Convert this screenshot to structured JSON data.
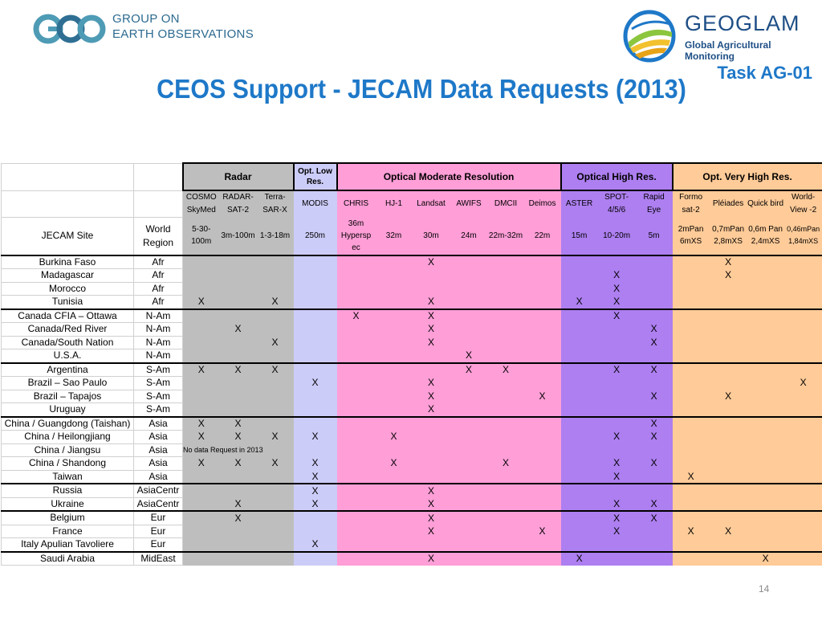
{
  "header": {
    "geo_line1": "GROUP ON",
    "geo_line2": "EARTH OBSERVATIONS",
    "geoglam_name": "GEOGLAM",
    "geoglam_sub": "Global Agricultural Monitoring",
    "task": "Task AG-01",
    "title": "CEOS Support - JECAM Data Requests (2013)"
  },
  "colors": {
    "title": "#1e78c8",
    "radar": "#bebebe",
    "low_res": "#ccccf8",
    "moderate": "#ff9ed7",
    "high": "#ad7ff0",
    "very_high": "#ffcb98"
  },
  "groups": [
    "Radar",
    "Opt. Low Res.",
    "Optical Moderate Resolution",
    "Optical High Res.",
    "Opt. Very High Res."
  ],
  "columns": [
    {
      "name": "COSMO SkyMed",
      "res": "5-30-100m"
    },
    {
      "name": "RADAR-SAT-2",
      "res": "3m-100m"
    },
    {
      "name": "Terra-SAR-X",
      "res": "1-3-18m"
    },
    {
      "name": "MODIS",
      "res": "250m"
    },
    {
      "name": "CHRIS",
      "res": "36m Hypersp ec"
    },
    {
      "name": "HJ-1",
      "res": "32m"
    },
    {
      "name": "Landsat",
      "res": "30m"
    },
    {
      "name": "AWIFS",
      "res": "24m"
    },
    {
      "name": "DMCII",
      "res": "22m-32m"
    },
    {
      "name": "Deimos",
      "res": "22m"
    },
    {
      "name": "ASTER",
      "res": "15m"
    },
    {
      "name": "SPOT-4/5/6",
      "res": "10-20m"
    },
    {
      "name": "Rapid Eye",
      "res": "5m"
    },
    {
      "name": "Formo sat-2",
      "res": "2mPan 6mXS"
    },
    {
      "name": "Pléiades",
      "res": "0,7mPan 2,8mXS"
    },
    {
      "name": "Quick bird",
      "res": "0,6m Pan 2,4mXS"
    },
    {
      "name": "World-View -2",
      "res": "0,46mPan 1,84mXS"
    }
  ],
  "site_header": "JECAM Site",
  "region_header": "World Region",
  "no_data_note": "No data Request in 2013",
  "rows": [
    {
      "site": "Burkina Faso",
      "region": "Afr",
      "x": [
        "",
        "",
        "",
        "",
        "",
        "",
        "X",
        "",
        "",
        "",
        "",
        "",
        "",
        "",
        "X",
        "",
        ""
      ]
    },
    {
      "site": "Madagascar",
      "region": "Afr",
      "x": [
        "",
        "",
        "",
        "",
        "",
        "",
        "",
        "",
        "",
        "",
        "",
        "X",
        "",
        "",
        "X",
        "",
        ""
      ]
    },
    {
      "site": "Morocco",
      "region": "Afr",
      "x": [
        "",
        "",
        "",
        "",
        "",
        "",
        "",
        "",
        "",
        "",
        "",
        "X",
        "",
        "",
        "",
        "",
        ""
      ]
    },
    {
      "site": "Tunisia",
      "region": "Afr",
      "x": [
        "X",
        "",
        "X",
        "",
        "",
        "",
        "X",
        "",
        "",
        "",
        "X",
        "X",
        "",
        "",
        "",
        "",
        ""
      ]
    },
    {
      "site": "Canada CFIA – Ottawa",
      "region": "N-Am",
      "x": [
        "",
        "",
        "",
        "",
        "X",
        "",
        "X",
        "",
        "",
        "",
        "",
        "X",
        "",
        "",
        "",
        "",
        ""
      ]
    },
    {
      "site": "Canada/Red River",
      "region": "N-Am",
      "x": [
        "",
        "X",
        "",
        "",
        "",
        "",
        "X",
        "",
        "",
        "",
        "",
        "",
        "X",
        "",
        "",
        "",
        ""
      ]
    },
    {
      "site": "Canada/South Nation",
      "region": "N-Am",
      "x": [
        "",
        "",
        "X",
        "",
        "",
        "",
        "X",
        "",
        "",
        "",
        "",
        "",
        "X",
        "",
        "",
        "",
        ""
      ]
    },
    {
      "site": "U.S.A.",
      "region": "N-Am",
      "x": [
        "",
        "",
        "",
        "",
        "",
        "",
        "",
        "X",
        "",
        "",
        "",
        "",
        "",
        "",
        "",
        "",
        ""
      ]
    },
    {
      "site": "Argentina",
      "region": "S-Am",
      "x": [
        "X",
        "X",
        "X",
        "",
        "",
        "",
        "",
        "X",
        "X",
        "",
        "",
        "X",
        "X",
        "",
        "",
        "",
        ""
      ]
    },
    {
      "site": "Brazil – Sao Paulo",
      "region": "S-Am",
      "x": [
        "",
        "",
        "",
        "X",
        "",
        "",
        "X",
        "",
        "",
        "",
        "",
        "",
        "",
        "",
        "",
        "",
        "X"
      ]
    },
    {
      "site": "Brazil – Tapajos",
      "region": "S-Am",
      "x": [
        "",
        "",
        "",
        "",
        "",
        "",
        "X",
        "",
        "",
        "X",
        "",
        "",
        "X",
        "",
        "X",
        "",
        ""
      ]
    },
    {
      "site": "Uruguay",
      "region": "S-Am",
      "x": [
        "",
        "",
        "",
        "",
        "",
        "",
        "X",
        "",
        "",
        "",
        "",
        "",
        "",
        "",
        "",
        "",
        ""
      ]
    },
    {
      "site": "China / Guangdong (Taishan)",
      "region": "Asia",
      "x": [
        "X",
        "X",
        "",
        "",
        "",
        "",
        "",
        "",
        "",
        "",
        "",
        "",
        "X",
        "",
        "",
        "",
        ""
      ]
    },
    {
      "site": "China / Heilongjiang",
      "region": "Asia",
      "x": [
        "X",
        "X",
        "X",
        "X",
        "",
        "X",
        "",
        "",
        "",
        "",
        "",
        "X",
        "X",
        "",
        "",
        "",
        ""
      ]
    },
    {
      "site": "China / Jiangsu",
      "region": "Asia",
      "note": true
    },
    {
      "site": "China / Shandong",
      "region": "Asia",
      "x": [
        "X",
        "X",
        "X",
        "X",
        "",
        "X",
        "",
        "",
        "X",
        "",
        "",
        "X",
        "X",
        "",
        "",
        "",
        ""
      ]
    },
    {
      "site": "Taiwan",
      "region": "Asia",
      "x": [
        "",
        "",
        "",
        "X",
        "",
        "",
        "",
        "",
        "",
        "",
        "",
        "X",
        "",
        "X",
        "",
        "",
        ""
      ]
    },
    {
      "site": "Russia",
      "region": "AsiaCentr",
      "x": [
        "",
        "",
        "",
        "X",
        "",
        "",
        "X",
        "",
        "",
        "",
        "",
        "",
        "",
        "",
        "",
        "",
        ""
      ]
    },
    {
      "site": "Ukraine",
      "region": "AsiaCentr",
      "x": [
        "",
        "X",
        "",
        "X",
        "",
        "",
        "X",
        "",
        "",
        "",
        "",
        "X",
        "X",
        "",
        "",
        "",
        ""
      ]
    },
    {
      "site": "Belgium",
      "region": "Eur",
      "x": [
        "",
        "X",
        "",
        "",
        "",
        "",
        "X",
        "",
        "",
        "",
        "",
        "X",
        "X",
        "",
        "",
        "",
        ""
      ]
    },
    {
      "site": "France",
      "region": "Eur",
      "x": [
        "",
        "",
        "",
        "",
        "",
        "",
        "X",
        "",
        "",
        "X",
        "",
        "X",
        "",
        "X",
        "X",
        "",
        ""
      ]
    },
    {
      "site": "Italy Apulian Tavoliere",
      "region": "Eur",
      "x": [
        "",
        "",
        "",
        "X",
        "",
        "",
        "",
        "",
        "",
        "",
        "",
        "",
        "",
        "",
        "",
        "",
        ""
      ]
    },
    {
      "site": "Saudi Arabia",
      "region": "MidEast",
      "x": [
        "",
        "",
        "",
        "",
        "",
        "",
        "X",
        "",
        "",
        "",
        "X",
        "",
        "",
        "",
        "",
        "X",
        ""
      ]
    }
  ],
  "page_number": "14"
}
